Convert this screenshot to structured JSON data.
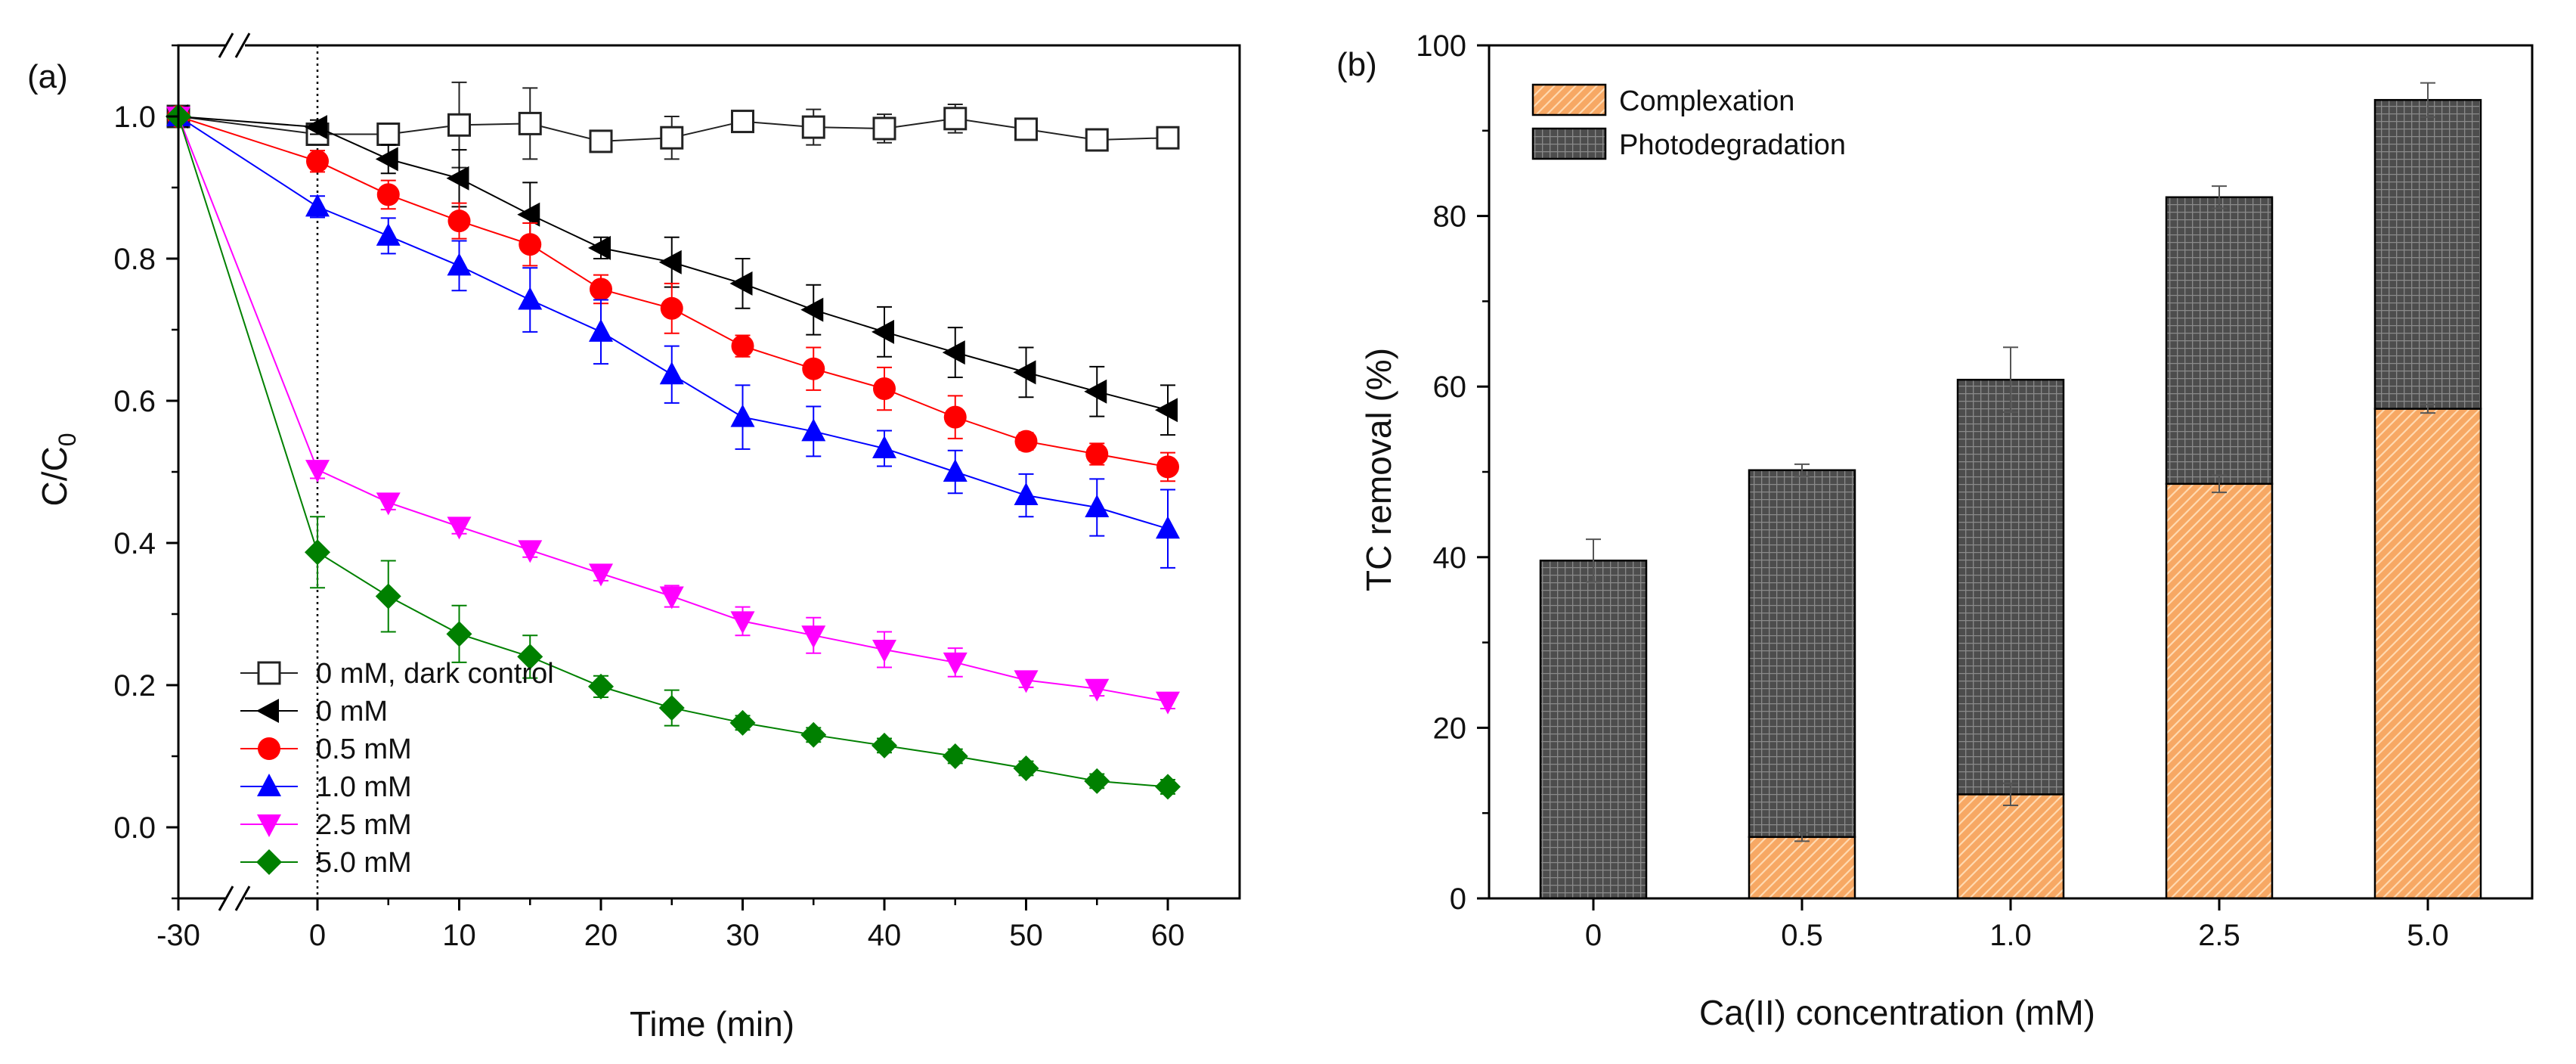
{
  "chart_data": [
    {
      "panel": "(a)",
      "type": "line",
      "xlabel": "Time (min)",
      "ylabel_main": "C/C",
      "ylabel_sub": "0",
      "xlim": [
        -30,
        65
      ],
      "ylim": [
        -0.1,
        1.1
      ],
      "x_ticks": [
        -30,
        0,
        10,
        20,
        30,
        40,
        50,
        60
      ],
      "x_tick_labels": [
        "-30",
        "0",
        "10",
        "20",
        "30",
        "40",
        "50",
        "60"
      ],
      "y_ticks": [
        0,
        0.2,
        0.4,
        0.6,
        0.8,
        1.0
      ],
      "y_tick_labels": [
        "0.0",
        "0.2",
        "0.4",
        "0.6",
        "0.8",
        "1.0"
      ],
      "series": [
        {
          "name": "0 mM, dark control",
          "marker": "square-open",
          "color": "#222222",
          "x": [
            -30,
            0,
            5,
            10,
            15,
            20,
            25,
            30,
            35,
            40,
            45,
            50,
            55,
            60
          ],
          "y": [
            1.0,
            0.975,
            0.975,
            0.988,
            0.99,
            0.965,
            0.97,
            0.993,
            0.985,
            0.983,
            0.997,
            0.982,
            0.967,
            0.97
          ],
          "err": [
            0,
            0.012,
            0.01,
            0.06,
            0.05,
            0.01,
            0.03,
            0.012,
            0.025,
            0.02,
            0.02,
            0.01,
            0.015,
            0.01
          ]
        },
        {
          "name": "0 mM",
          "marker": "triangle-left",
          "color": "#000000",
          "x": [
            -30,
            0,
            5,
            10,
            15,
            20,
            25,
            30,
            35,
            40,
            45,
            50,
            55,
            60
          ],
          "y": [
            1.0,
            0.985,
            0.94,
            0.913,
            0.862,
            0.815,
            0.795,
            0.765,
            0.728,
            0.697,
            0.668,
            0.64,
            0.613,
            0.587
          ],
          "err": [
            0,
            0.01,
            0.02,
            0.04,
            0.045,
            0.015,
            0.035,
            0.035,
            0.035,
            0.035,
            0.035,
            0.035,
            0.035,
            0.035
          ]
        },
        {
          "name": "0.5 mM",
          "marker": "circle",
          "color": "#ff0000",
          "x": [
            -30,
            0,
            5,
            10,
            15,
            20,
            25,
            30,
            35,
            40,
            45,
            50,
            55,
            60
          ],
          "y": [
            1.0,
            0.937,
            0.89,
            0.853,
            0.82,
            0.757,
            0.73,
            0.677,
            0.645,
            0.617,
            0.577,
            0.543,
            0.525,
            0.507
          ],
          "err": [
            0,
            0.015,
            0.02,
            0.025,
            0.03,
            0.02,
            0.035,
            0.015,
            0.03,
            0.03,
            0.03,
            0.012,
            0.015,
            0.02
          ]
        },
        {
          "name": "1.0 mM",
          "marker": "triangle-up",
          "color": "#0000ff",
          "x": [
            -30,
            0,
            5,
            10,
            15,
            20,
            25,
            30,
            35,
            40,
            45,
            50,
            55,
            60
          ],
          "y": [
            1.0,
            0.873,
            0.832,
            0.79,
            0.742,
            0.697,
            0.637,
            0.577,
            0.557,
            0.533,
            0.5,
            0.467,
            0.45,
            0.42
          ],
          "err": [
            0,
            0.015,
            0.025,
            0.035,
            0.045,
            0.045,
            0.04,
            0.045,
            0.035,
            0.025,
            0.03,
            0.03,
            0.04,
            0.055
          ]
        },
        {
          "name": "2.5 mM",
          "marker": "triangle-down",
          "color": "#ff00ff",
          "x": [
            -30,
            0,
            5,
            10,
            15,
            20,
            25,
            30,
            35,
            40,
            45,
            50,
            55,
            60
          ],
          "y": [
            1.0,
            0.503,
            0.457,
            0.423,
            0.39,
            0.357,
            0.325,
            0.29,
            0.27,
            0.25,
            0.232,
            0.207,
            0.195,
            0.177
          ],
          "err": [
            0,
            0.012,
            0.01,
            0.01,
            0.01,
            0.01,
            0.015,
            0.02,
            0.025,
            0.025,
            0.02,
            0.01,
            0.01,
            0.01
          ]
        },
        {
          "name": "5.0 mM",
          "marker": "diamond",
          "color": "#008000",
          "x": [
            -30,
            0,
            5,
            10,
            15,
            20,
            25,
            30,
            35,
            40,
            45,
            50,
            55,
            60
          ],
          "y": [
            1.0,
            0.387,
            0.325,
            0.272,
            0.24,
            0.198,
            0.168,
            0.147,
            0.13,
            0.115,
            0.1,
            0.083,
            0.065,
            0.057
          ],
          "err": [
            0,
            0.05,
            0.05,
            0.04,
            0.03,
            0.015,
            0.025,
            0.01,
            0.01,
            0.01,
            0.01,
            0.01,
            0.01,
            0.01
          ]
        }
      ]
    },
    {
      "panel": "(b)",
      "type": "bar",
      "stacked": true,
      "xlabel": "Ca(II) concentration (mM)",
      "ylabel": "TC removal (%)",
      "ylim": [
        0,
        100
      ],
      "y_ticks": [
        0,
        20,
        40,
        60,
        80,
        100
      ],
      "y_tick_labels": [
        "0",
        "20",
        "40",
        "60",
        "80",
        "100"
      ],
      "categories": [
        "0",
        "0.5",
        "1.0",
        "2.5",
        "5.0"
      ],
      "series": [
        {
          "name": "Complexation",
          "color": "#f5a05a",
          "values": [
            0,
            7.2,
            12.2,
            48.6,
            57.4
          ],
          "err": [
            0,
            0.5,
            1.3,
            1.0,
            0.5
          ]
        },
        {
          "name": "Photodegradation",
          "color": "#555555",
          "values": [
            39.6,
            43.0,
            48.6,
            33.6,
            36.2
          ]
        }
      ],
      "total_err": [
        2.5,
        0.7,
        3.8,
        1.3,
        2.0
      ]
    }
  ]
}
